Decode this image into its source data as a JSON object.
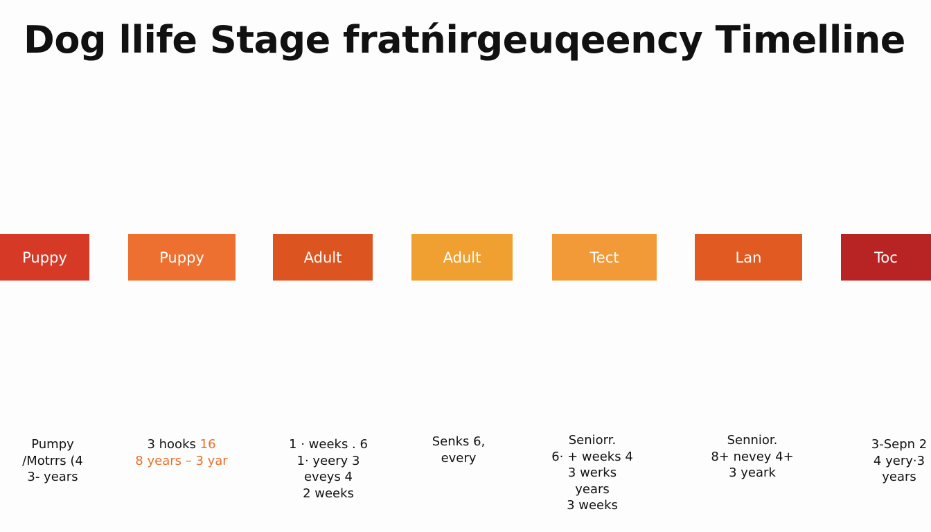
{
  "title": "Dog llife Stage fratńirgeuqeency Timelline",
  "stages": [
    {
      "label": "Puppy",
      "details": [
        "Pumpy",
        "/Motrrs (4",
        "3- years"
      ]
    },
    {
      "label": "Puppy",
      "details": [
        "3 hooks",
        "16",
        "8 years – 3 yar"
      ]
    },
    {
      "label": "Adult",
      "details": [
        "1 · weeks . 6",
        "1· yeery 3",
        "eveys 4",
        "2 weeks"
      ]
    },
    {
      "label": "Adult",
      "details": [
        "Senks 6,",
        "every"
      ]
    },
    {
      "label": "Tect",
      "details": [
        "Seniorr.",
        "6· + weeks 4",
        "3 werks",
        "years",
        "3 weeks"
      ]
    },
    {
      "label": "Lan",
      "details": [
        "Sennior.",
        "8+ nevey 4+",
        "3 yeark"
      ]
    },
    {
      "label": "Toc",
      "details": [
        "3-Sepn 2",
        "4 yery·3",
        "years"
      ]
    }
  ]
}
